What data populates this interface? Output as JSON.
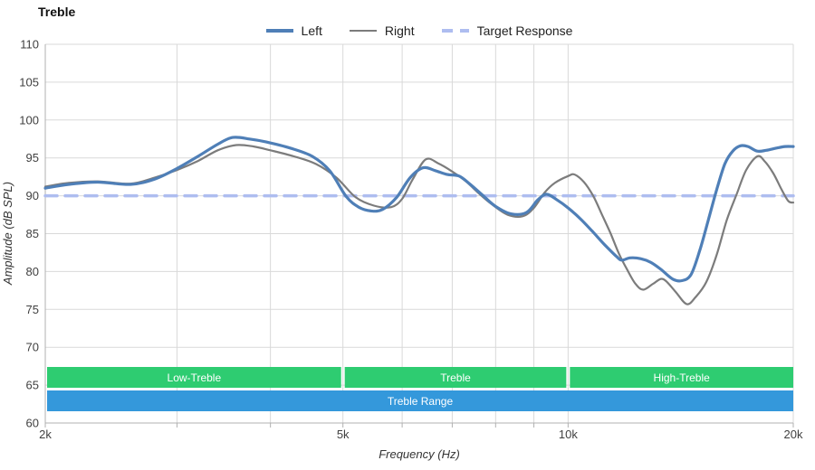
{
  "title": "Treble",
  "legend": [
    {
      "label": "Left",
      "color": "#4f7fb7",
      "dash": false,
      "thickness": 4
    },
    {
      "label": "Right",
      "color": "#7c7c7c",
      "dash": false,
      "thickness": 2
    },
    {
      "label": "Target Response",
      "color": "#aebdf0",
      "dash": true,
      "thickness": 4
    }
  ],
  "chart_data": {
    "type": "line",
    "title": "Treble",
    "xlabel": "Frequency (Hz)",
    "ylabel": "Amplitude (dB SPL)",
    "x_scale": "log",
    "xlim": [
      2000,
      20000
    ],
    "ylim": [
      60,
      110
    ],
    "y_ticks": [
      60,
      65,
      70,
      75,
      80,
      85,
      90,
      95,
      100,
      105,
      110
    ],
    "x_gridlines": [
      2000,
      3000,
      4000,
      5000,
      6000,
      7000,
      8000,
      9000,
      10000,
      20000
    ],
    "x_tick_labels": [
      {
        "v": 2000,
        "t": "2k"
      },
      {
        "v": 5000,
        "t": "5k"
      },
      {
        "v": 10000,
        "t": "10k"
      },
      {
        "v": 20000,
        "t": "20k"
      }
    ],
    "grid_color": "#d9d9d9",
    "axis_color": "#b0b0b0",
    "tick_text_color": "#404040",
    "series": [
      {
        "name": "Target Response",
        "color": "#aebdf0",
        "width": 3.5,
        "dash": "13 9",
        "smooth": false,
        "points": [
          [
            2000,
            90
          ],
          [
            20000,
            90
          ]
        ]
      },
      {
        "name": "Right",
        "color": "#7c7c7c",
        "width": 2.2,
        "dash": null,
        "smooth": true,
        "points": [
          [
            2000,
            91.2
          ],
          [
            2150,
            91.7
          ],
          [
            2350,
            91.9
          ],
          [
            2600,
            91.6
          ],
          [
            2800,
            92.4
          ],
          [
            3000,
            93.4
          ],
          [
            3200,
            94.6
          ],
          [
            3400,
            96.0
          ],
          [
            3600,
            96.7
          ],
          [
            3800,
            96.5
          ],
          [
            4000,
            96.0
          ],
          [
            4300,
            95.2
          ],
          [
            4600,
            94.2
          ],
          [
            4900,
            92.4
          ],
          [
            5200,
            89.8
          ],
          [
            5500,
            88.7
          ],
          [
            5800,
            88.5
          ],
          [
            6000,
            89.6
          ],
          [
            6200,
            92.2
          ],
          [
            6450,
            94.8
          ],
          [
            6700,
            94.3
          ],
          [
            7000,
            93.2
          ],
          [
            7300,
            91.9
          ],
          [
            7600,
            90.3
          ],
          [
            7900,
            88.9
          ],
          [
            8300,
            87.5
          ],
          [
            8700,
            87.3
          ],
          [
            9000,
            88.4
          ],
          [
            9300,
            90.4
          ],
          [
            9600,
            91.7
          ],
          [
            10000,
            92.6
          ],
          [
            10200,
            92.8
          ],
          [
            10500,
            91.8
          ],
          [
            10800,
            90.0
          ],
          [
            11100,
            87.5
          ],
          [
            11400,
            85.0
          ],
          [
            11700,
            82.3
          ],
          [
            12000,
            80.2
          ],
          [
            12300,
            78.4
          ],
          [
            12600,
            77.6
          ],
          [
            13000,
            78.4
          ],
          [
            13400,
            79.0
          ],
          [
            13900,
            77.4
          ],
          [
            14400,
            75.7
          ],
          [
            14800,
            76.6
          ],
          [
            15300,
            78.6
          ],
          [
            15800,
            82.2
          ],
          [
            16300,
            86.8
          ],
          [
            16800,
            90.2
          ],
          [
            17300,
            93.4
          ],
          [
            17900,
            95.2
          ],
          [
            18300,
            94.6
          ],
          [
            18800,
            93.0
          ],
          [
            19300,
            90.8
          ],
          [
            19700,
            89.3
          ],
          [
            20000,
            89.1
          ]
        ]
      },
      {
        "name": "Left",
        "color": "#4f7fb7",
        "width": 3.2,
        "dash": null,
        "smooth": true,
        "points": [
          [
            2000,
            91.0
          ],
          [
            2150,
            91.5
          ],
          [
            2350,
            91.8
          ],
          [
            2600,
            91.5
          ],
          [
            2800,
            92.2
          ],
          [
            3000,
            93.6
          ],
          [
            3200,
            95.2
          ],
          [
            3400,
            96.8
          ],
          [
            3560,
            97.7
          ],
          [
            3750,
            97.5
          ],
          [
            3950,
            97.1
          ],
          [
            4250,
            96.3
          ],
          [
            4550,
            95.2
          ],
          [
            4800,
            93.3
          ],
          [
            5050,
            89.9
          ],
          [
            5250,
            88.5
          ],
          [
            5450,
            88.0
          ],
          [
            5650,
            88.2
          ],
          [
            5900,
            89.8
          ],
          [
            6150,
            92.4
          ],
          [
            6400,
            93.7
          ],
          [
            6650,
            93.3
          ],
          [
            6900,
            92.8
          ],
          [
            7150,
            92.6
          ],
          [
            7400,
            91.5
          ],
          [
            7700,
            90.0
          ],
          [
            8000,
            88.6
          ],
          [
            8400,
            87.6
          ],
          [
            8800,
            87.8
          ],
          [
            9100,
            89.4
          ],
          [
            9350,
            90.2
          ],
          [
            9650,
            89.5
          ],
          [
            10000,
            88.4
          ],
          [
            10400,
            86.9
          ],
          [
            10800,
            85.2
          ],
          [
            11200,
            83.5
          ],
          [
            11600,
            82.0
          ],
          [
            11800,
            81.5
          ],
          [
            12100,
            81.8
          ],
          [
            12500,
            81.7
          ],
          [
            12900,
            81.2
          ],
          [
            13300,
            80.3
          ],
          [
            13800,
            79.0
          ],
          [
            14200,
            78.8
          ],
          [
            14600,
            79.6
          ],
          [
            15000,
            82.8
          ],
          [
            15400,
            86.8
          ],
          [
            15800,
            90.8
          ],
          [
            16200,
            94.2
          ],
          [
            16600,
            95.9
          ],
          [
            17000,
            96.6
          ],
          [
            17400,
            96.5
          ],
          [
            17900,
            95.9
          ],
          [
            18400,
            96.0
          ],
          [
            19000,
            96.3
          ],
          [
            19500,
            96.5
          ],
          [
            20000,
            96.5
          ]
        ]
      }
    ],
    "bands": [
      {
        "label": "Low-Treble",
        "from": 2000,
        "to": 5000,
        "row": 0,
        "color": "#2ecc71",
        "text_color": "#ffffff"
      },
      {
        "label": "Treble",
        "from": 5000,
        "to": 10000,
        "row": 0,
        "color": "#2ecc71",
        "text_color": "#ffffff"
      },
      {
        "label": "High-Treble",
        "from": 10000,
        "to": 20000,
        "row": 0,
        "color": "#2ecc71",
        "text_color": "#ffffff"
      },
      {
        "label": "Treble Range",
        "from": 2000,
        "to": 20000,
        "row": 1,
        "color": "#3498db",
        "text_color": "#ffffff"
      }
    ]
  }
}
